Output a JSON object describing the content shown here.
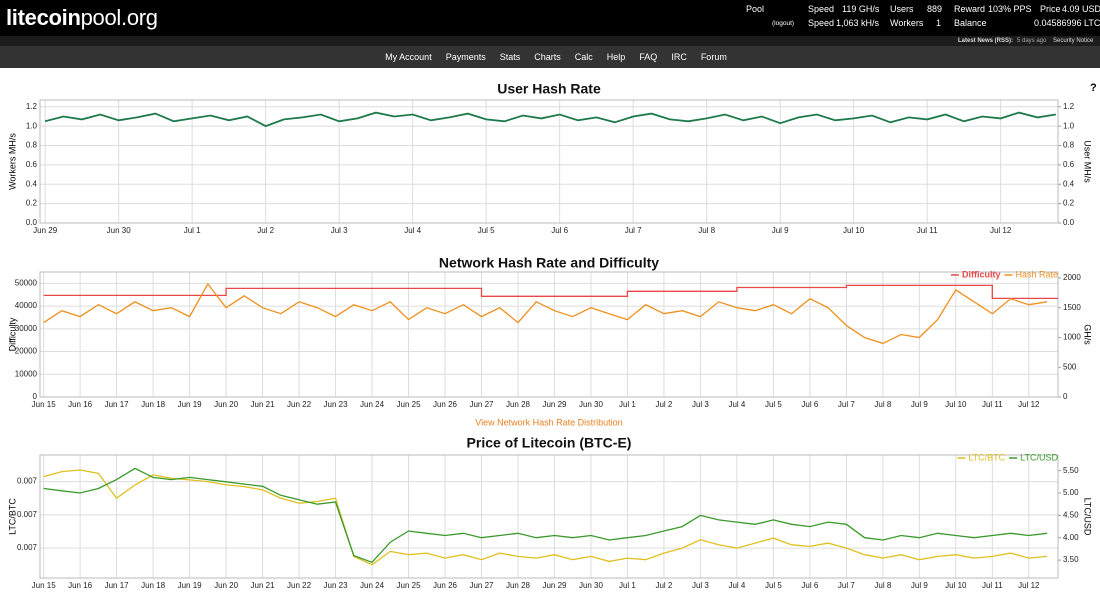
{
  "header": {
    "logo": [
      "litecoin",
      "pool.org"
    ],
    "pool": "Pool",
    "logout": "(logout)",
    "stats": [
      {
        "label": "Speed",
        "value": "119 GH/s"
      },
      {
        "label": "Users",
        "value": "889"
      },
      {
        "label": "Reward",
        "value": "103% PPS"
      },
      {
        "label": "Price",
        "value": "4.09 USD"
      },
      {
        "label": "Speed",
        "value": "1,063 kH/s"
      },
      {
        "label": "Workers",
        "value": "1"
      },
      {
        "label": "Balance",
        "value": "0.04586996 LTC"
      }
    ],
    "news": {
      "label": "Latest News (RSS):",
      "age": "5 days ago",
      "title": "Security Notice"
    }
  },
  "nav": [
    "My Account",
    "Payments",
    "Stats",
    "Charts",
    "Calc",
    "Help",
    "FAQ",
    "IRC",
    "Forum"
  ],
  "help": "?",
  "link": "View Network Hash Rate Distribution",
  "chart_data": [
    {
      "type": "line",
      "title": "User Hash Rate",
      "ylabel": "Workers MH/s",
      "y2label": "User MH/s",
      "grid": true,
      "x": [
        0,
        0.25,
        0.5,
        0.75,
        1,
        1.25,
        1.5,
        1.75,
        2,
        2.25,
        2.5,
        2.75,
        3,
        3.25,
        3.5,
        3.75,
        4,
        4.25,
        4.5,
        4.75,
        5,
        5.25,
        5.5,
        5.75,
        6,
        6.25,
        6.5,
        6.75,
        7,
        7.25,
        7.5,
        7.75,
        8,
        8.25,
        8.5,
        8.75,
        9,
        9.25,
        9.5,
        9.75,
        10,
        10.25,
        10.5,
        10.75,
        11,
        11.25,
        11.5,
        11.75,
        12,
        12.25,
        12.5,
        12.75,
        13,
        13.25,
        13.5,
        13.75
      ],
      "series": [
        {
          "color": "#1e7a4a",
          "values": [
            1.05,
            1.1,
            1.07,
            1.12,
            1.06,
            1.09,
            1.13,
            1.05,
            1.08,
            1.11,
            1.06,
            1.1,
            1.0,
            1.07,
            1.09,
            1.12,
            1.05,
            1.08,
            1.14,
            1.1,
            1.12,
            1.06,
            1.09,
            1.13,
            1.07,
            1.05,
            1.11,
            1.08,
            1.12,
            1.06,
            1.09,
            1.04,
            1.1,
            1.13,
            1.07,
            1.05,
            1.08,
            1.12,
            1.06,
            1.1,
            1.03,
            1.09,
            1.12,
            1.06,
            1.08,
            1.11,
            1.04,
            1.09,
            1.07,
            1.12,
            1.05,
            1.1,
            1.08,
            1.14,
            1.09,
            1.12
          ]
        }
      ],
      "xlim": [
        -0.07,
        13.78
      ],
      "xticks": [
        {
          "value": 0,
          "label": "Jun 29"
        },
        {
          "value": 1,
          "label": "Jun 30"
        },
        {
          "value": 2,
          "label": "Jul 1"
        },
        {
          "value": 3,
          "label": "Jul 2"
        },
        {
          "value": 4,
          "label": "Jul 3"
        },
        {
          "value": 5,
          "label": "Jul 4"
        },
        {
          "value": 6,
          "label": "Jul 5"
        },
        {
          "value": 7,
          "label": "Jul 6"
        },
        {
          "value": 8,
          "label": "Jul 7"
        },
        {
          "value": 9,
          "label": "Jul 8"
        },
        {
          "value": 10,
          "label": "Jul 9"
        },
        {
          "value": 11,
          "label": "Jul 10"
        },
        {
          "value": 12,
          "label": "Jul 11"
        },
        {
          "value": 13,
          "label": "Jul 12"
        }
      ],
      "ylim": [
        0,
        1.27
      ],
      "yticks": [
        {
          "value": 0,
          "label": "0.0"
        },
        0.2,
        0.4,
        0.6,
        0.8,
        {
          "value": 1,
          "label": "1.0"
        },
        1.2
      ],
      "y2lim": [
        0,
        1.27
      ],
      "y2ticks": [
        {
          "value": 0,
          "label": "0.0"
        },
        0.2,
        0.4,
        0.6,
        0.8,
        {
          "value": 1,
          "label": "1.0"
        },
        1.2
      ]
    },
    {
      "type": "line",
      "title": "Network Hash Rate and Difficulty",
      "ylabel": "Difficulty",
      "y2label": "GH/s",
      "grid": true,
      "legend": "upper right",
      "x": [
        0,
        0.5,
        1,
        1.5,
        2,
        2.5,
        3,
        3.5,
        4,
        4.5,
        5,
        5.5,
        6,
        6.5,
        7,
        7.5,
        8,
        8.5,
        9,
        9.5,
        10,
        10.5,
        11,
        11.5,
        12,
        12.5,
        13,
        13.5,
        14,
        14.5,
        15,
        15.5,
        16,
        16.5,
        17,
        17.5,
        18,
        18.5,
        19,
        19.5,
        20,
        20.5,
        21,
        21.5,
        22,
        22.5,
        23,
        23.5,
        24,
        24.5,
        25,
        25.5,
        26,
        26.5,
        27,
        27.5
      ],
      "series": [
        {
          "name": "Difficulty",
          "color": "#e84848",
          "x": [
            0,
            5,
            5,
            12,
            12,
            16,
            16,
            19,
            19,
            22,
            22,
            26,
            26,
            27.8
          ],
          "values": [
            44700,
            44700,
            47800,
            47800,
            44300,
            44300,
            46500,
            46500,
            48200,
            48200,
            49100,
            49100,
            43400,
            43400
          ]
        },
        {
          "name": "Hash Rate",
          "color": "#f0901e",
          "axis": "y2",
          "values": [
            1250,
            1450,
            1350,
            1550,
            1400,
            1600,
            1450,
            1500,
            1350,
            1900,
            1500,
            1700,
            1500,
            1400,
            1600,
            1500,
            1350,
            1550,
            1450,
            1600,
            1300,
            1500,
            1400,
            1550,
            1350,
            1500,
            1250,
            1600,
            1450,
            1350,
            1500,
            1400,
            1300,
            1550,
            1400,
            1450,
            1350,
            1600,
            1500,
            1450,
            1550,
            1400,
            1650,
            1500,
            1200,
            1000,
            900,
            1050,
            1000,
            1300,
            1800,
            1600,
            1400,
            1650,
            1550,
            1600
          ]
        }
      ],
      "xlim": [
        -0.1,
        27.8
      ],
      "xticks": [
        {
          "value": 0,
          "label": "Jun 15"
        },
        {
          "value": 1,
          "label": "Jun 16"
        },
        {
          "value": 2,
          "label": "Jun 17"
        },
        {
          "value": 3,
          "label": "Jun 18"
        },
        {
          "value": 4,
          "label": "Jun 19"
        },
        {
          "value": 5,
          "label": "Jun 20"
        },
        {
          "value": 6,
          "label": "Jun 21"
        },
        {
          "value": 7,
          "label": "Jun 22"
        },
        {
          "value": 8,
          "label": "Jun 23"
        },
        {
          "value": 9,
          "label": "Jun 24"
        },
        {
          "value": 10,
          "label": "Jun 25"
        },
        {
          "value": 11,
          "label": "Jun 26"
        },
        {
          "value": 12,
          "label": "Jun 27"
        },
        {
          "value": 13,
          "label": "Jun 28"
        },
        {
          "value": 14,
          "label": "Jun 29"
        },
        {
          "value": 15,
          "label": "Jun 30"
        },
        {
          "value": 16,
          "label": "Jul 1"
        },
        {
          "value": 17,
          "label": "Jul 2"
        },
        {
          "value": 18,
          "label": "Jul 3"
        },
        {
          "value": 19,
          "label": "Jul 4"
        },
        {
          "value": 20,
          "label": "Jul 5"
        },
        {
          "value": 21,
          "label": "Jul 6"
        },
        {
          "value": 22,
          "label": "Jul 7"
        },
        {
          "value": 23,
          "label": "Jul 8"
        },
        {
          "value": 24,
          "label": "Jul 9"
        },
        {
          "value": 25,
          "label": "Jul 10"
        },
        {
          "value": 26,
          "label": "Jul 11"
        },
        {
          "value": 27,
          "label": "Jul 12"
        }
      ],
      "ylim": [
        0,
        55000
      ],
      "yticks": [
        0,
        10000,
        20000,
        30000,
        40000,
        50000
      ],
      "y2lim": [
        0,
        2100
      ],
      "y2ticks": [
        0,
        500,
        1000,
        1500,
        2000
      ]
    },
    {
      "type": "line",
      "title": "Price of Litecoin (BTC-E)",
      "ylabel": "LTC/BTC",
      "y2label": "LTC/USD",
      "grid": true,
      "legend": "upper right",
      "x": [
        0,
        0.5,
        1,
        1.5,
        2,
        2.5,
        3,
        3.5,
        4,
        4.5,
        5,
        5.5,
        6,
        6.5,
        7,
        7.5,
        8,
        8.5,
        9,
        9.5,
        10,
        10.5,
        11,
        11.5,
        12,
        12.5,
        13,
        13.5,
        14,
        14.5,
        15,
        15.5,
        16,
        16.5,
        17,
        17.5,
        18,
        18.5,
        19,
        19.5,
        20,
        20.5,
        21,
        21.5,
        22,
        22.5,
        23,
        23.5,
        24,
        24.5,
        25,
        25.5,
        26,
        26.5,
        27,
        27.5
      ],
      "series": [
        {
          "name": "LTC/BTC",
          "color": "#e0c020",
          "values": [
            0.00743,
            0.00746,
            0.00747,
            0.00745,
            0.0073,
            0.00738,
            0.00744,
            0.00742,
            0.00741,
            0.0074,
            0.00738,
            0.00737,
            0.00735,
            0.0073,
            0.00727,
            0.00728,
            0.0073,
            0.00695,
            0.0069,
            0.00698,
            0.00696,
            0.00697,
            0.00694,
            0.00696,
            0.00693,
            0.00697,
            0.00695,
            0.00694,
            0.00696,
            0.00693,
            0.00695,
            0.00692,
            0.00694,
            0.00693,
            0.00697,
            0.007,
            0.00705,
            0.00702,
            0.007,
            0.00703,
            0.00706,
            0.00702,
            0.00701,
            0.00703,
            0.007,
            0.00696,
            0.00694,
            0.00696,
            0.00693,
            0.00695,
            0.00696,
            0.00694,
            0.00695,
            0.00697,
            0.00694,
            0.00695
          ]
        },
        {
          "name": "LTC/USD",
          "color": "#3a9a2a",
          "axis": "y2",
          "values": [
            5.1,
            5.05,
            5.0,
            5.1,
            5.3,
            5.55,
            5.35,
            5.3,
            5.35,
            5.3,
            5.25,
            5.2,
            5.15,
            4.95,
            4.85,
            4.75,
            4.8,
            3.6,
            3.45,
            3.9,
            4.15,
            4.1,
            4.05,
            4.1,
            4.0,
            4.05,
            4.1,
            4.0,
            4.05,
            4.0,
            4.05,
            3.95,
            4.0,
            4.05,
            4.15,
            4.25,
            4.5,
            4.4,
            4.35,
            4.3,
            4.4,
            4.3,
            4.25,
            4.35,
            4.3,
            4.0,
            3.95,
            4.05,
            4.0,
            4.1,
            4.05,
            4.0,
            4.05,
            4.1,
            4.05,
            4.1
          ]
        }
      ],
      "xlim": [
        -0.1,
        27.8
      ],
      "xticks": [
        {
          "value": 0,
          "label": "Jun 15"
        },
        {
          "value": 1,
          "label": "Jun 16"
        },
        {
          "value": 2,
          "label": "Jun 17"
        },
        {
          "value": 3,
          "label": "Jun 18"
        },
        {
          "value": 4,
          "label": "Jun 19"
        },
        {
          "value": 5,
          "label": "Jun 20"
        },
        {
          "value": 6,
          "label": "Jun 21"
        },
        {
          "value": 7,
          "label": "Jun 22"
        },
        {
          "value": 8,
          "label": "Jun 23"
        },
        {
          "value": 9,
          "label": "Jun 24"
        },
        {
          "value": 10,
          "label": "Jun 25"
        },
        {
          "value": 11,
          "label": "Jun 26"
        },
        {
          "value": 12,
          "label": "Jun 27"
        },
        {
          "value": 13,
          "label": "Jun 28"
        },
        {
          "value": 14,
          "label": "Jun 29"
        },
        {
          "value": 15,
          "label": "Jun 30"
        },
        {
          "value": 16,
          "label": "Jul 1"
        },
        {
          "value": 17,
          "label": "Jul 2"
        },
        {
          "value": 18,
          "label": "Jul 3"
        },
        {
          "value": 19,
          "label": "Jul 4"
        },
        {
          "value": 20,
          "label": "Jul 5"
        },
        {
          "value": 21,
          "label": "Jul 6"
        },
        {
          "value": 22,
          "label": "Jul 7"
        },
        {
          "value": 23,
          "label": "Jul 8"
        },
        {
          "value": 24,
          "label": "Jul 9"
        },
        {
          "value": 25,
          "label": "Jul 10"
        },
        {
          "value": 26,
          "label": "Jul 11"
        },
        {
          "value": 27,
          "label": "Jul 12"
        }
      ],
      "ylim": [
        0.00682,
        0.00756
      ],
      "yticks": [
        {
          "value": 0.007,
          "label": "0.007"
        },
        {
          "value": 0.0072,
          "label": "0.007"
        },
        {
          "value": 0.0074,
          "label": "0.007"
        }
      ],
      "y2lim": [
        3.1,
        5.85
      ],
      "y2ticks": [
        {
          "value": 3.5,
          "label": "3.50"
        },
        {
          "value": 4,
          "label": "4.00"
        },
        {
          "value": 4.5,
          "label": "4.50"
        },
        {
          "value": 5,
          "label": "5.00"
        },
        {
          "value": 5.5,
          "label": "5.50"
        }
      ]
    }
  ]
}
